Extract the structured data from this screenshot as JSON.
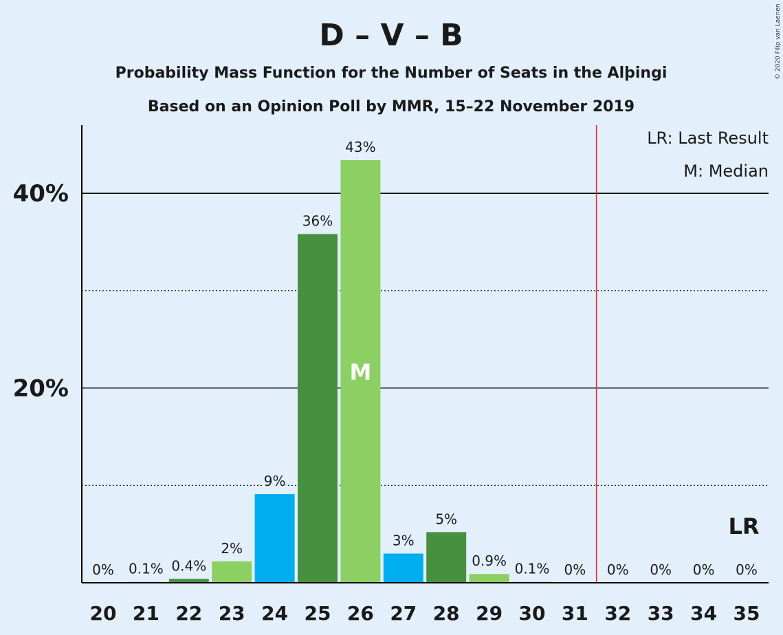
{
  "chart_data": {
    "type": "bar",
    "title": "D – V – B",
    "subtitle_lines": [
      "Probability Mass Function for the Number of Seats in the Alþingi",
      "Based on an Opinion Poll by MMR, 15–22 November 2019"
    ],
    "categories": [
      "20",
      "21",
      "22",
      "23",
      "24",
      "25",
      "26",
      "27",
      "28",
      "29",
      "30",
      "31",
      "32",
      "33",
      "34",
      "35"
    ],
    "values": [
      0,
      0.1,
      0.4,
      2.2,
      9.1,
      35.8,
      43.4,
      3.0,
      5.2,
      0.9,
      0.1,
      0,
      0,
      0,
      0,
      0
    ],
    "data_labels": [
      "0%",
      "0.1%",
      "0.4%",
      "2%",
      "9%",
      "36%",
      "43%",
      "3%",
      "5%",
      "0.9%",
      "0.1%",
      "0%",
      "0%",
      "0%",
      "0%",
      "0%"
    ],
    "bar_colors": [
      "#8ccf63",
      "#8ccf63",
      "#46903f",
      "#8ccf63",
      "#00aeef",
      "#46903f",
      "#8ccf63",
      "#00aeef",
      "#46903f",
      "#8ccf63",
      "#8ccf63",
      "#8ccf63",
      "#8ccf63",
      "#8ccf63",
      "#8ccf63",
      "#8ccf63"
    ],
    "ylim": [
      0,
      47
    ],
    "yticks": [
      {
        "value": 20,
        "label": "20%"
      },
      {
        "value": 40,
        "label": "40%"
      }
    ],
    "minor_gridlines": [
      10,
      30
    ],
    "median_category": "26",
    "median_marker": "M",
    "last_result_category": "35",
    "last_result_marker": "LR",
    "last_result_line_after": "31",
    "legend": [
      "LR: Last Result",
      "M: Median"
    ],
    "legend_placement": "top-right",
    "colors": {
      "background": "#e3f0fc",
      "last_result_line": "#e8262b",
      "axis": "#000000"
    }
  },
  "copyright": "© 2020 Filip van Laenen"
}
